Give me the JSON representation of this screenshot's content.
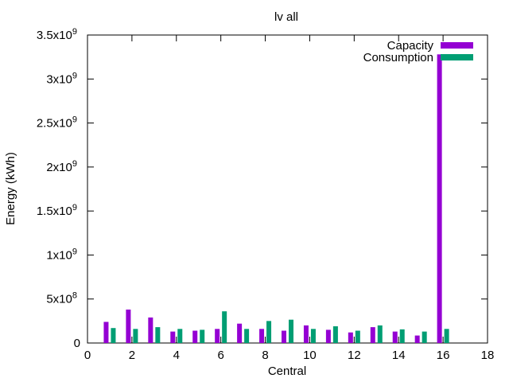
{
  "chart_data": {
    "type": "bar",
    "title": "lv all",
    "xlabel": "Central",
    "ylabel": "Energy (kWh)",
    "xlim": [
      0,
      18
    ],
    "ylim": [
      0,
      3500000000
    ],
    "grid": false,
    "legend_position": "top-right",
    "x": [
      1,
      2,
      3,
      4,
      5,
      6,
      7,
      8,
      9,
      10,
      11,
      12,
      13,
      14,
      15,
      16
    ],
    "x_ticks": [
      {
        "value": 0,
        "label": "0"
      },
      {
        "value": 2,
        "label": "2"
      },
      {
        "value": 4,
        "label": "4"
      },
      {
        "value": 6,
        "label": "6"
      },
      {
        "value": 8,
        "label": "8"
      },
      {
        "value": 10,
        "label": "10"
      },
      {
        "value": 12,
        "label": "12"
      },
      {
        "value": 14,
        "label": "14"
      },
      {
        "value": 16,
        "label": "16"
      },
      {
        "value": 18,
        "label": "18"
      }
    ],
    "y_ticks": [
      {
        "value": 0,
        "label": "0"
      },
      {
        "value": 500000000,
        "label": "5x10",
        "exp": "8"
      },
      {
        "value": 1000000000,
        "label": "1x10",
        "exp": "9"
      },
      {
        "value": 1500000000,
        "label": "1.5x10",
        "exp": "9"
      },
      {
        "value": 2000000000,
        "label": "2x10",
        "exp": "9"
      },
      {
        "value": 2500000000,
        "label": "2.5x10",
        "exp": "9"
      },
      {
        "value": 3000000000,
        "label": "3x10",
        "exp": "9"
      },
      {
        "value": 3500000000,
        "label": "3.5x10",
        "exp": "9"
      }
    ],
    "series": [
      {
        "name": "Capacity",
        "color": "#9400d3",
        "values": [
          240000000,
          380000000,
          290000000,
          130000000,
          140000000,
          160000000,
          220000000,
          160000000,
          140000000,
          200000000,
          150000000,
          120000000,
          180000000,
          130000000,
          85000000,
          3280000000
        ]
      },
      {
        "name": "Consumption",
        "color": "#009e73",
        "values": [
          170000000,
          160000000,
          180000000,
          160000000,
          150000000,
          360000000,
          160000000,
          250000000,
          265000000,
          160000000,
          190000000,
          140000000,
          200000000,
          155000000,
          130000000,
          160000000
        ]
      }
    ]
  }
}
